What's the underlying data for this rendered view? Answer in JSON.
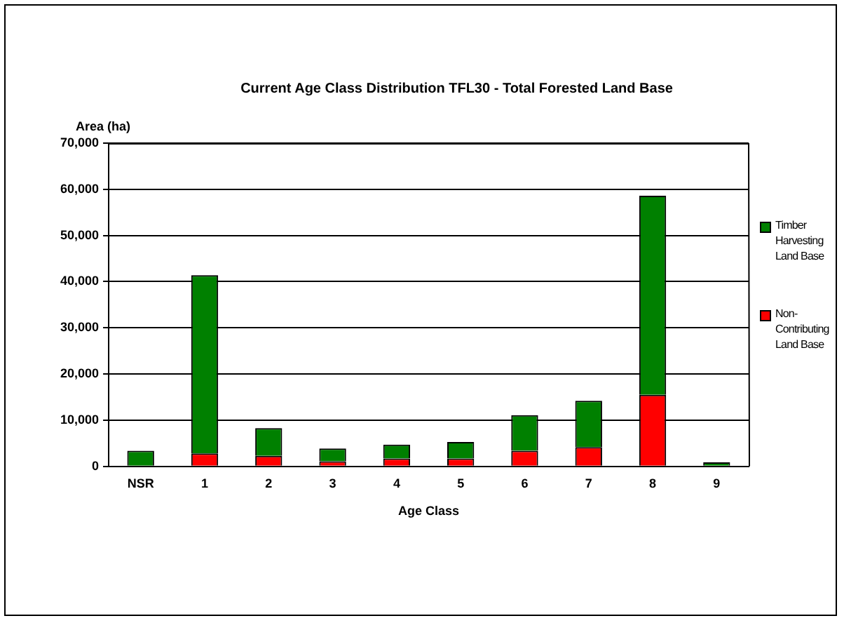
{
  "chart_data": {
    "type": "bar",
    "title": "Current Age Class Distribution TFL30 - Total Forested Land Base",
    "xlabel": "Age Class",
    "ylabel": "Area (ha)",
    "categories": [
      "NSR",
      "1",
      "2",
      "3",
      "4",
      "5",
      "6",
      "7",
      "8",
      "9"
    ],
    "stacked": true,
    "series": [
      {
        "name": "Non-Contributing Land Base",
        "color": "#ff0000",
        "values": [
          null,
          2800,
          2300,
          1100,
          1700,
          1700,
          3400,
          4200,
          15500,
          0
        ]
      },
      {
        "name": "Timber Harvesting Land Base",
        "color": "#008000",
        "values": [
          3400,
          38600,
          6000,
          2800,
          3000,
          3600,
          7700,
          10000,
          43100,
          900
        ]
      }
    ],
    "ylim": [
      0,
      70000
    ],
    "yticks": [
      {
        "value": 0,
        "label": "0"
      },
      {
        "value": 10000,
        "label": "10,000"
      },
      {
        "value": 20000,
        "label": "20,000"
      },
      {
        "value": 30000,
        "label": "30,000"
      },
      {
        "value": 40000,
        "label": "40,000"
      },
      {
        "value": 50000,
        "label": "50,000"
      },
      {
        "value": 60000,
        "label": "60,000"
      },
      {
        "value": 70000,
        "label": "70,000"
      }
    ],
    "grid": "y",
    "legend": "right"
  }
}
